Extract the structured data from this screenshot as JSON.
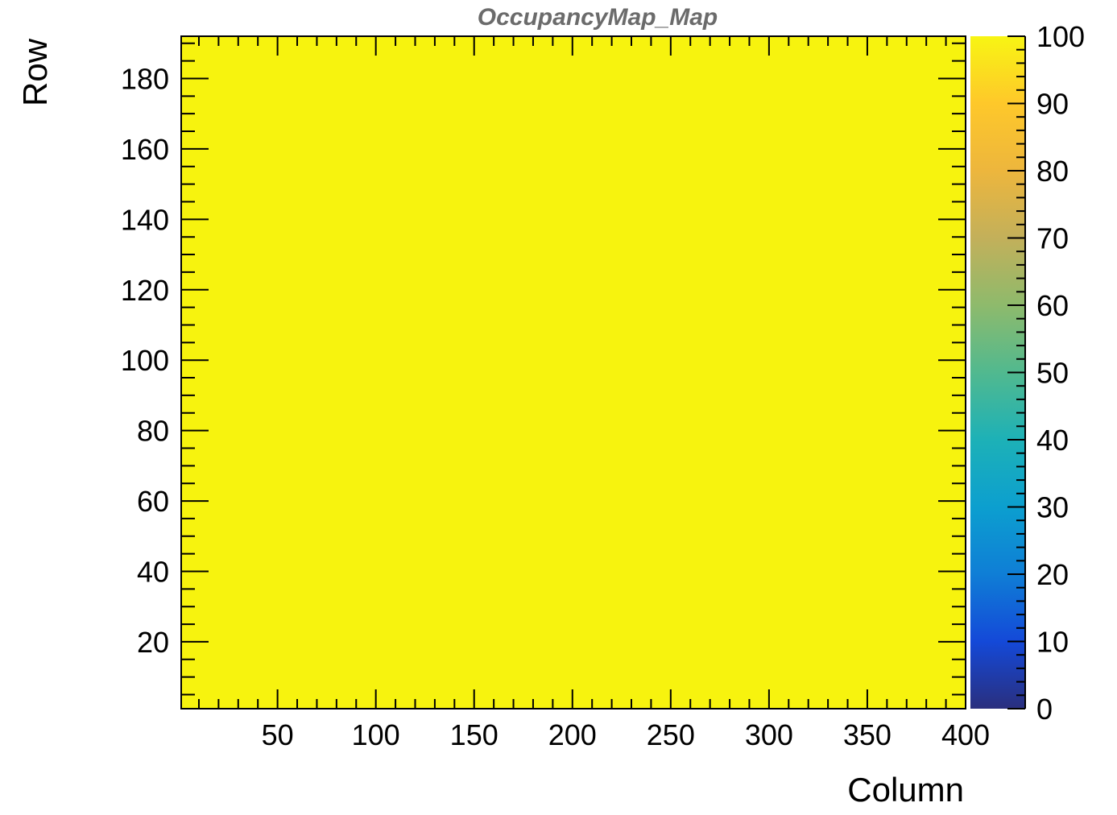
{
  "chart_data": {
    "type": "heatmap",
    "title": "OccupancyMap_Map",
    "xlabel": "Column",
    "ylabel": "Row",
    "xlim": [
      1,
      400
    ],
    "ylim": [
      1,
      192
    ],
    "x_ticks": [
      50,
      100,
      150,
      200,
      250,
      300,
      350,
      400
    ],
    "y_ticks": [
      20,
      40,
      60,
      80,
      100,
      120,
      140,
      160,
      180
    ],
    "z_range": [
      0,
      100
    ],
    "z_ticks": [
      0,
      10,
      20,
      30,
      40,
      50,
      60,
      70,
      80,
      90,
      100
    ],
    "cells": [
      {
        "x_range": [
          1,
          400
        ],
        "y_range": [
          1,
          192
        ],
        "value": 100
      }
    ],
    "colormap": "viridis-like",
    "colors": {
      "fill": "#f7f30e",
      "palette_stops": [
        "#2a2f7e",
        "#1449d8",
        "#0f7ed6",
        "#0c9fcf",
        "#1db1b7",
        "#51b98f",
        "#8eba6c",
        "#c3b05a",
        "#edb63d",
        "#fec82a",
        "#f8f513"
      ]
    }
  }
}
